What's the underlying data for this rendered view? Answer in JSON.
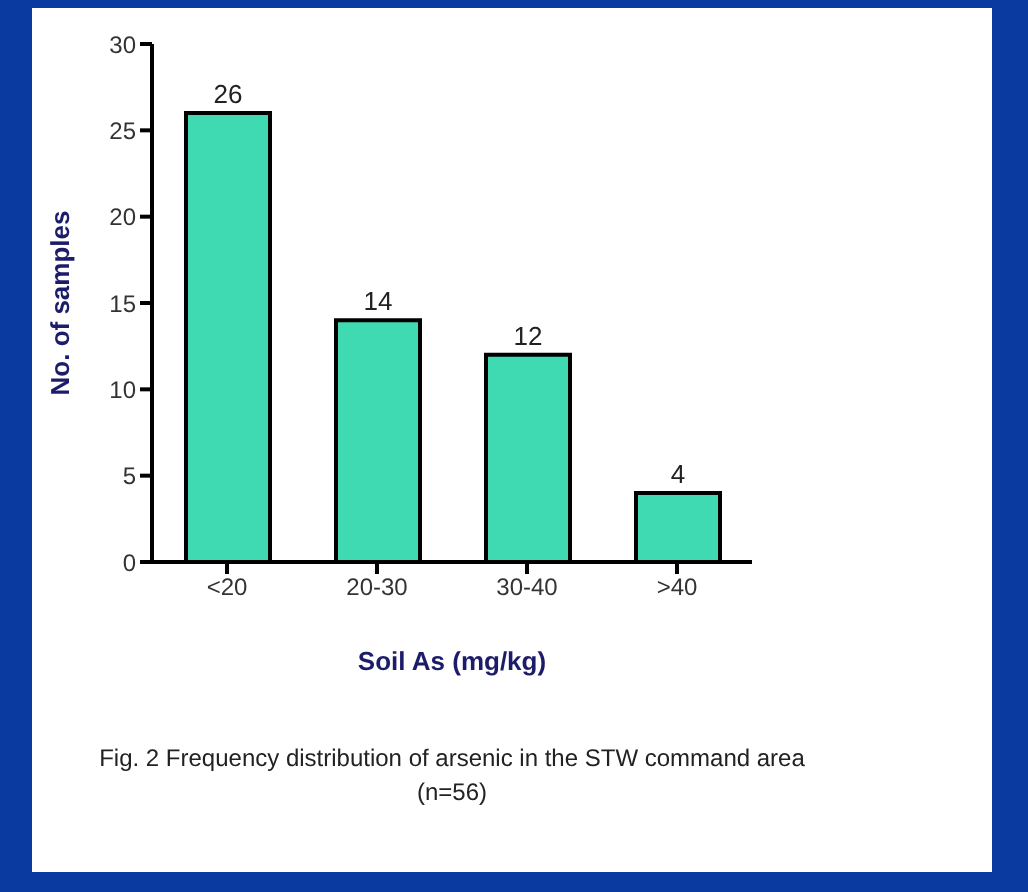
{
  "chart_data": {
    "type": "bar",
    "categories": [
      "<20",
      "20-30",
      "30-40",
      ">40"
    ],
    "values": [
      26,
      14,
      12,
      4
    ],
    "color": "#3fd9b2",
    "data_labels": true,
    "xlabel": "Soil As (mg/kg)",
    "ylabel": "No. of samples",
    "ylim": [
      0,
      30
    ],
    "yticks": [
      0,
      5,
      10,
      15,
      20,
      25,
      30
    ],
    "grid": false,
    "legend": false,
    "annotations": [
      "Fig. 2 Frequency distribution of arsenic in the STW command area (n=56)"
    ]
  }
}
